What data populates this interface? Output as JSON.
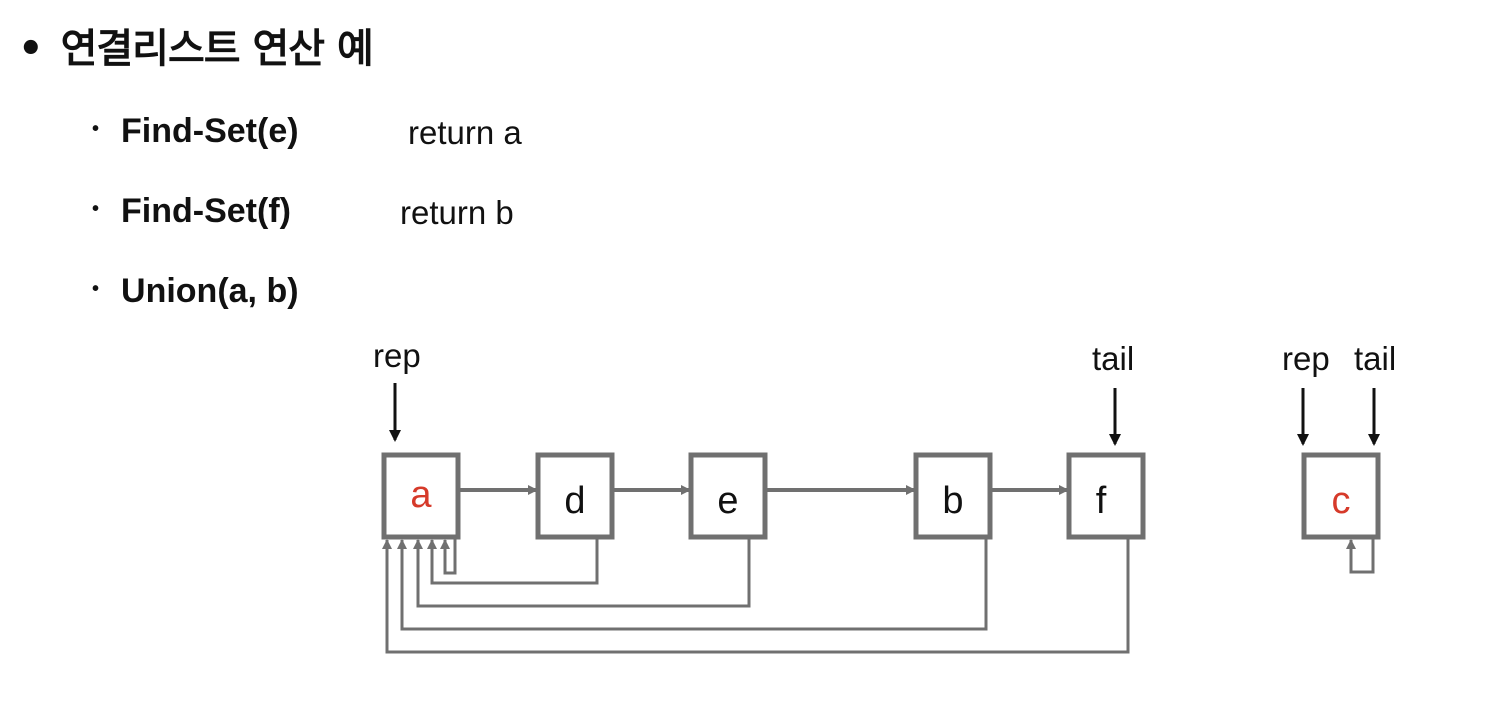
{
  "title": "연결리스트 연산 예",
  "bullet": "•",
  "items": [
    {
      "op": "Find-Set(e)",
      "result": "return  a"
    },
    {
      "op": "Find-Set(f)",
      "result": "return  b"
    },
    {
      "op": "Union(a, b)",
      "result": ""
    }
  ],
  "diagram": {
    "pointer_labels": {
      "rep": "rep",
      "tail": "tail",
      "rep2": "rep",
      "tail2": "tail"
    },
    "nodes": [
      {
        "id": "a",
        "label": "a",
        "highlight": true
      },
      {
        "id": "d",
        "label": "d",
        "highlight": false
      },
      {
        "id": "e",
        "label": "e",
        "highlight": false
      },
      {
        "id": "b",
        "label": "b",
        "highlight": false
      },
      {
        "id": "f",
        "label": "f",
        "highlight": false
      },
      {
        "id": "c",
        "label": "c",
        "highlight": true
      }
    ],
    "colors": {
      "box": "#707070",
      "highlight": "#d63a2a",
      "text": "#111111"
    }
  }
}
